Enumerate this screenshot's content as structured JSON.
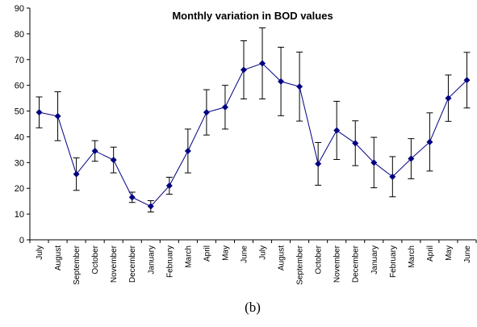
{
  "chart_data": {
    "type": "line",
    "title": "Monthly variation in BOD values",
    "caption": "(b)",
    "categories": [
      "July",
      "August",
      "September",
      "October",
      "November",
      "December",
      "January",
      "February",
      "March",
      "April",
      "May",
      "June",
      "July",
      "August",
      "September",
      "October",
      "November",
      "December",
      "January",
      "February",
      "March",
      "April",
      "May",
      "June"
    ],
    "values": [
      49.5,
      48,
      25.5,
      34.5,
      31,
      16.5,
      13,
      21,
      34.5,
      49.5,
      51.5,
      66,
      68.5,
      61.5,
      59.5,
      29.5,
      42.5,
      37.5,
      30,
      24.5,
      31.5,
      38,
      55,
      62
    ],
    "errors": [
      6,
      9.5,
      6.3,
      4,
      5,
      2,
      2.2,
      3.3,
      8.5,
      8.8,
      8.5,
      11.3,
      13.8,
      13.3,
      13.4,
      8.3,
      11.3,
      8.7,
      9.8,
      7.8,
      7.8,
      11.3,
      9,
      10.8
    ],
    "color": "#000080",
    "error_color": "#000000",
    "ylim": [
      0,
      90
    ],
    "yticks": [
      0,
      10,
      20,
      30,
      40,
      50,
      60,
      70,
      80,
      90
    ],
    "grid": false
  }
}
